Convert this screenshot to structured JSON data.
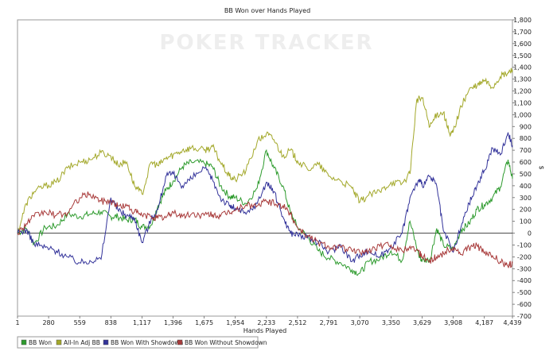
{
  "watermark": "POKER TRACKER",
  "chart_data": {
    "type": "line",
    "title": "BB Won over Hands Played",
    "xlabel": "Hands Played",
    "ylabel": "$",
    "xlim": [
      1,
      4439
    ],
    "ylim": [
      -700,
      1800
    ],
    "x_ticks": [
      1,
      280,
      559,
      838,
      1117,
      1396,
      1675,
      1954,
      2233,
      2512,
      2791,
      3070,
      3350,
      3629,
      3908,
      4187,
      4439
    ],
    "x_tick_labels": [
      "1",
      "280",
      "559",
      "838",
      "1,117",
      "1,396",
      "1,675",
      "1,954",
      "2,233",
      "2,512",
      "2,791",
      "3,070",
      "3,350",
      "3,629",
      "3,908",
      "4,187",
      "4,439"
    ],
    "y_ticks": [
      -700,
      -600,
      -500,
      -400,
      -300,
      -200,
      -100,
      0,
      100,
      200,
      300,
      400,
      500,
      600,
      700,
      800,
      900,
      1000,
      1100,
      1200,
      1300,
      1400,
      1500,
      1600,
      1700,
      1800
    ],
    "y_tick_labels": [
      "-700",
      "-600",
      "-500",
      "-400",
      "-300",
      "-200",
      "-100",
      "0",
      "100",
      "200",
      "300",
      "400",
      "500",
      "600",
      "700",
      "800",
      "900",
      "1,000",
      "1,100",
      "1,200",
      "1,300",
      "1,400",
      "1,500",
      "1,600",
      "1,700",
      "1,800"
    ],
    "grid": false,
    "legend_position": "bottom-left",
    "series": [
      {
        "name": "BB Won",
        "color": "#2e9b2e",
        "x": [
          1,
          80,
          150,
          250,
          350,
          450,
          559,
          650,
          750,
          838,
          900,
          980,
          1050,
          1117,
          1200,
          1260,
          1330,
          1396,
          1480,
          1560,
          1675,
          1750,
          1820,
          1900,
          1954,
          2050,
          2150,
          2233,
          2300,
          2380,
          2450,
          2512,
          2600,
          2700,
          2791,
          2900,
          3000,
          3070,
          3150,
          3250,
          3350,
          3450,
          3520,
          3600,
          3629,
          3700,
          3760,
          3820,
          3908,
          3980,
          4050,
          4120,
          4187,
          4260,
          4330,
          4400,
          4439
        ],
        "y": [
          0,
          40,
          -90,
          50,
          60,
          160,
          140,
          160,
          180,
          140,
          140,
          110,
          120,
          50,
          70,
          230,
          360,
          440,
          560,
          600,
          590,
          560,
          400,
          310,
          300,
          250,
          380,
          700,
          550,
          400,
          170,
          50,
          -30,
          -150,
          -210,
          -250,
          -310,
          -340,
          -240,
          -220,
          -150,
          -230,
          100,
          -190,
          -230,
          -220,
          40,
          -100,
          -140,
          30,
          80,
          200,
          240,
          300,
          390,
          620,
          460
        ]
      },
      {
        "name": "All-In Adj BB",
        "color": "#a3a82a",
        "x": [
          1,
          80,
          150,
          250,
          350,
          450,
          559,
          650,
          750,
          838,
          900,
          980,
          1050,
          1117,
          1200,
          1260,
          1330,
          1396,
          1480,
          1560,
          1675,
          1750,
          1820,
          1900,
          1954,
          2050,
          2150,
          2233,
          2300,
          2380,
          2450,
          2512,
          2600,
          2700,
          2791,
          2900,
          3000,
          3070,
          3150,
          3250,
          3350,
          3450,
          3520,
          3580,
          3629,
          3700,
          3760,
          3820,
          3880,
          3908,
          3980,
          4050,
          4120,
          4187,
          4260,
          4330,
          4400,
          4439
        ],
        "y": [
          0,
          250,
          350,
          400,
          430,
          550,
          600,
          620,
          680,
          650,
          580,
          600,
          400,
          330,
          600,
          570,
          630,
          660,
          700,
          720,
          700,
          730,
          600,
          480,
          450,
          530,
          770,
          840,
          790,
          650,
          700,
          610,
          540,
          580,
          480,
          440,
          380,
          260,
          320,
          350,
          430,
          420,
          500,
          1120,
          1140,
          900,
          1000,
          1020,
          820,
          860,
          1070,
          1210,
          1240,
          1290,
          1230,
          1320,
          1350,
          1380
        ]
      },
      {
        "name": "BB Won With Showdown",
        "color": "#33339a",
        "x": [
          1,
          80,
          150,
          250,
          350,
          450,
          559,
          650,
          750,
          838,
          900,
          980,
          1050,
          1117,
          1200,
          1260,
          1330,
          1396,
          1480,
          1560,
          1675,
          1750,
          1820,
          1900,
          1954,
          2050,
          2150,
          2233,
          2300,
          2380,
          2450,
          2512,
          2600,
          2700,
          2791,
          2900,
          3000,
          3070,
          3150,
          3250,
          3350,
          3450,
          3520,
          3600,
          3629,
          3700,
          3760,
          3820,
          3908,
          3980,
          4050,
          4120,
          4187,
          4260,
          4330,
          4400,
          4439
        ],
        "y": [
          0,
          30,
          -90,
          -120,
          -150,
          -200,
          -250,
          -230,
          -220,
          300,
          200,
          150,
          130,
          -80,
          120,
          200,
          480,
          500,
          400,
          460,
          550,
          450,
          300,
          230,
          210,
          160,
          250,
          430,
          350,
          140,
          0,
          -10,
          -40,
          -80,
          -160,
          -100,
          -240,
          -180,
          -150,
          -200,
          -110,
          0,
          300,
          450,
          400,
          480,
          400,
          20,
          -160,
          60,
          250,
          400,
          530,
          720,
          660,
          850,
          740
        ]
      },
      {
        "name": "BB Won Without Showdown",
        "color": "#a83a3a",
        "x": [
          1,
          80,
          150,
          250,
          350,
          450,
          559,
          650,
          750,
          838,
          900,
          980,
          1050,
          1117,
          1200,
          1260,
          1330,
          1396,
          1480,
          1560,
          1675,
          1750,
          1820,
          1900,
          1954,
          2050,
          2150,
          2233,
          2300,
          2380,
          2450,
          2512,
          2600,
          2700,
          2791,
          2900,
          3000,
          3070,
          3150,
          3250,
          3350,
          3450,
          3520,
          3600,
          3629,
          3700,
          3760,
          3820,
          3908,
          3980,
          4050,
          4120,
          4187,
          4260,
          4330,
          4400,
          4439
        ],
        "y": [
          0,
          80,
          140,
          180,
          150,
          170,
          300,
          330,
          270,
          270,
          230,
          230,
          180,
          150,
          140,
          130,
          130,
          180,
          140,
          160,
          150,
          160,
          140,
          180,
          190,
          240,
          230,
          270,
          250,
          230,
          160,
          50,
          -20,
          -80,
          -110,
          -120,
          -150,
          -160,
          -150,
          -110,
          -100,
          -150,
          -110,
          -150,
          -200,
          -230,
          -200,
          -170,
          -120,
          -180,
          -120,
          -100,
          -170,
          -190,
          -240,
          -280,
          -250
        ]
      }
    ]
  }
}
